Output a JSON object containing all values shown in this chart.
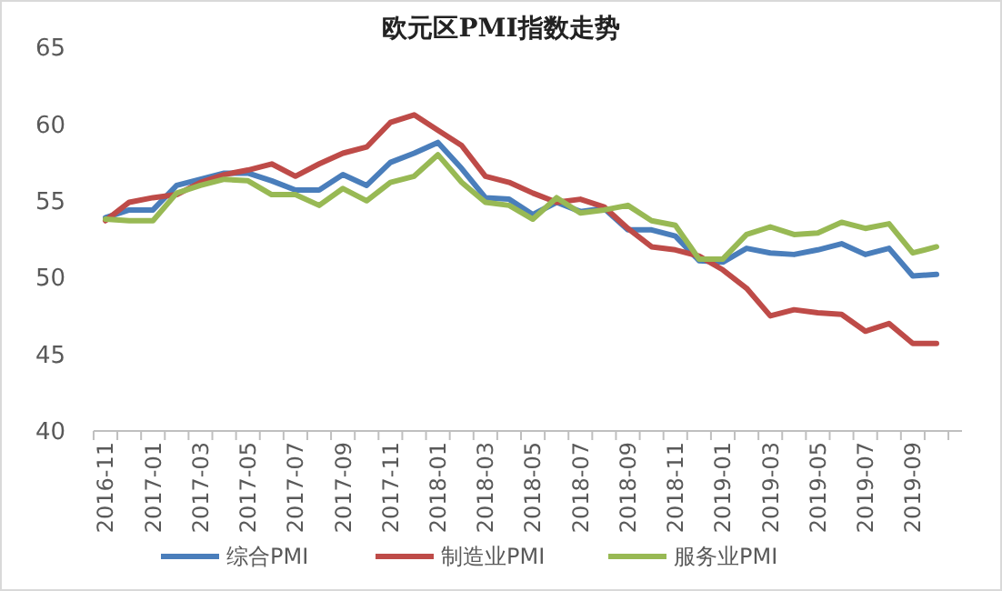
{
  "chart_data": {
    "type": "line",
    "title": "欧元区PMI指数走势",
    "categories": [
      "2016-11",
      null,
      "2017-01",
      null,
      "2017-03",
      null,
      "2017-05",
      null,
      "2017-07",
      null,
      "2017-09",
      null,
      "2017-11",
      null,
      "2018-01",
      null,
      "2018-03",
      null,
      "2018-05",
      null,
      "2018-07",
      null,
      "2018-09",
      null,
      "2018-11",
      null,
      "2019-01",
      null,
      "2019-03",
      null,
      "2019-05",
      null,
      "2019-07",
      null,
      "2019-09",
      null
    ],
    "series": [
      {
        "name": "综合PMI",
        "color": "#4a7ebb",
        "values": [
          53.9,
          54.4,
          54.4,
          56.0,
          56.4,
          56.8,
          56.8,
          56.3,
          55.7,
          55.7,
          56.7,
          56.0,
          57.5,
          58.1,
          58.8,
          57.1,
          55.2,
          55.1,
          54.1,
          54.9,
          54.3,
          54.5,
          53.1,
          53.1,
          52.7,
          51.1,
          51.0,
          51.9,
          51.6,
          51.5,
          51.8,
          52.2,
          51.5,
          51.9,
          50.1,
          50.2
        ]
      },
      {
        "name": "制造业PMI",
        "color": "#be4b48",
        "values": [
          53.7,
          54.9,
          55.2,
          55.4,
          56.2,
          56.7,
          57.0,
          57.4,
          56.6,
          57.4,
          58.1,
          58.5,
          60.1,
          60.6,
          59.6,
          58.6,
          56.6,
          56.2,
          55.5,
          54.9,
          55.1,
          54.6,
          53.2,
          52.0,
          51.8,
          51.4,
          50.5,
          49.3,
          47.5,
          47.9,
          47.7,
          47.6,
          46.5,
          47.0,
          45.7,
          45.7
        ]
      },
      {
        "name": "服务业PMI",
        "color": "#98b954",
        "values": [
          53.8,
          53.7,
          53.7,
          55.5,
          56.0,
          56.4,
          56.3,
          55.4,
          55.4,
          54.7,
          55.8,
          55.0,
          56.2,
          56.6,
          58.0,
          56.2,
          54.9,
          54.7,
          53.8,
          55.2,
          54.2,
          54.4,
          54.7,
          53.7,
          53.4,
          51.2,
          51.2,
          52.8,
          53.3,
          52.8,
          52.9,
          53.6,
          53.2,
          53.5,
          51.6,
          52.0
        ]
      }
    ],
    "ylim": [
      40,
      65
    ],
    "yticks": [
      40,
      45,
      50,
      55,
      60,
      65
    ],
    "legend": "bottom",
    "line_style": "solid"
  }
}
